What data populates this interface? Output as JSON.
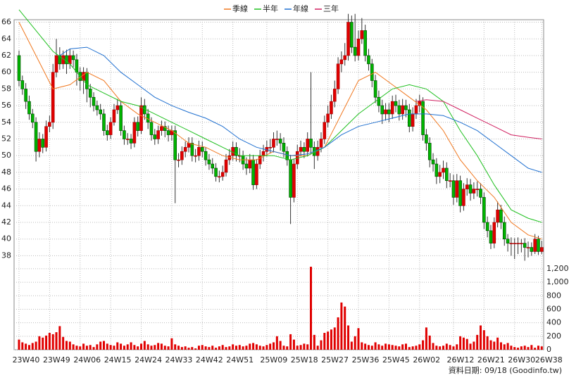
{
  "chart_data": {
    "type": "candlestick",
    "categories": [
      "23W40",
      null,
      null,
      null,
      null,
      null,
      null,
      null,
      null,
      "23W49",
      null,
      null,
      null,
      null,
      null,
      null,
      null,
      null,
      "24W06",
      null,
      null,
      null,
      null,
      null,
      null,
      null,
      null,
      "24W15",
      null,
      null,
      null,
      null,
      null,
      null,
      null,
      null,
      "24W24",
      null,
      null,
      null,
      null,
      null,
      null,
      null,
      null,
      "24W33",
      null,
      null,
      null,
      null,
      null,
      null,
      null,
      null,
      "24W42",
      null,
      null,
      null,
      null,
      null,
      null,
      null,
      null,
      "24W51",
      null,
      null,
      null,
      null,
      null,
      null,
      null,
      null,
      null,
      "25W09",
      null,
      null,
      null,
      null,
      null,
      null,
      null,
      null,
      "25W18",
      null,
      null,
      null,
      null,
      null,
      null,
      null,
      null,
      "25W27",
      null,
      null,
      null,
      null,
      null,
      null,
      null,
      null,
      "25W36",
      null,
      null,
      null,
      null,
      null,
      null,
      null,
      null,
      "25W45",
      null,
      null,
      null,
      null,
      null,
      null,
      null,
      null,
      "26W02",
      null,
      null,
      null,
      null,
      null,
      null,
      null,
      null,
      null,
      "26W12",
      null,
      null,
      null,
      null,
      null,
      null,
      null,
      null,
      "26W21",
      null,
      null,
      null,
      null,
      null,
      null,
      null,
      null,
      "26W30",
      null,
      null,
      null,
      null,
      null,
      null,
      null,
      "26W38"
    ],
    "open": [
      62,
      59,
      58,
      56.5,
      55,
      54,
      50.5,
      52,
      51,
      53.5,
      54,
      60,
      62,
      61,
      62,
      61,
      62,
      61.5,
      60,
      59,
      60,
      58,
      57,
      56,
      55.5,
      55,
      53,
      52.5,
      54,
      55.5,
      56,
      53,
      52,
      52,
      51.5,
      54,
      53,
      56,
      55,
      54,
      52.5,
      52,
      53,
      53.5,
      53,
      52.5,
      53,
      49.5,
      49.5,
      50.5,
      51,
      51.5,
      50,
      50,
      51,
      50.5,
      49.5,
      49,
      48.5,
      47.5,
      47.5,
      48,
      49.5,
      50,
      51,
      50,
      50,
      49,
      48.5,
      49.5,
      46.5,
      49,
      50,
      50.5,
      51,
      51,
      52,
      52,
      51.5,
      50.5,
      49.5,
      45,
      49,
      50.5,
      51,
      50.5,
      52,
      51,
      50,
      51,
      52,
      54,
      55,
      56.5,
      58,
      61,
      61.5,
      62,
      66,
      63,
      62,
      64,
      65,
      62,
      61,
      59,
      57,
      56,
      55,
      55.5,
      55,
      56.5,
      56,
      55,
      56,
      55.5,
      53.5,
      55,
      56,
      56.5,
      52.5,
      51.5,
      49.5,
      49,
      47.5,
      48,
      48.5,
      47,
      47,
      45,
      47,
      44,
      46,
      46.5,
      45.5,
      46,
      46,
      45,
      42,
      41,
      39.5,
      42,
      43.5,
      42,
      40,
      39.5,
      39.5,
      39.5,
      39.5,
      39.5,
      39,
      39,
      38.5,
      40,
      38.5
    ],
    "high": [
      62.6,
      59.6,
      58.7,
      57.2,
      55.6,
      54.6,
      52.8,
      52.6,
      54.2,
      54.8,
      61,
      64,
      63,
      62.6,
      62.7,
      62.8,
      62.6,
      62.2,
      60.6,
      60.6,
      60.5,
      58.6,
      57.6,
      56.6,
      56.2,
      55.6,
      53.7,
      54.6,
      56.2,
      56.8,
      56.6,
      53.6,
      52.7,
      52.6,
      54.6,
      54.7,
      57,
      56.8,
      55.6,
      54.6,
      53.2,
      53.6,
      54.2,
      54.1,
      53.6,
      53.6,
      53.6,
      50.3,
      51.1,
      51.7,
      52.2,
      52.2,
      50.8,
      51.8,
      51.7,
      51,
      50.2,
      49.7,
      49.1,
      48.2,
      48.8,
      50.2,
      50.8,
      51.7,
      51.6,
      50.9,
      50.6,
      49.8,
      50.2,
      50.1,
      49.6,
      50.7,
      51.3,
      51.8,
      52,
      52.8,
      53,
      52.7,
      52.2,
      51.1,
      50.1,
      49.6,
      51.3,
      51.8,
      51.6,
      52.8,
      60,
      51.7,
      51.8,
      52.8,
      54.8,
      56,
      57.3,
      59,
      61.8,
      62.5,
      63.5,
      67,
      66.8,
      67,
      65,
      66.5,
      65.7,
      62.8,
      61.6,
      59.7,
      57.8,
      56.7,
      56.3,
      56.3,
      57.2,
      57.3,
      56.7,
      56.8,
      56.7,
      56.2,
      55.8,
      56.8,
      57.3,
      57,
      53.2,
      52.2,
      50.3,
      49.7,
      48.9,
      49.4,
      49.2,
      47.9,
      47.7,
      47.8,
      47.6,
      46.7,
      47.3,
      47.2,
      46.8,
      46.9,
      46.7,
      45.6,
      42.7,
      41.7,
      42.6,
      44.5,
      44.1,
      42.7,
      40.6,
      40.2,
      40.1,
      40.2,
      40,
      40.1,
      39.7,
      39.6,
      40.6,
      40.4,
      39.8
    ],
    "low": [
      58.3,
      57.3,
      55.6,
      54.3,
      53.3,
      49.3,
      49.8,
      50.3,
      50.5,
      52.8,
      53.2,
      59.4,
      60.3,
      60.4,
      59.8,
      60.4,
      60.6,
      58.4,
      57.8,
      57.4,
      56.4,
      55.8,
      55.3,
      54.8,
      54.3,
      52.4,
      51.8,
      52,
      53.6,
      55,
      52.4,
      51.3,
      51.3,
      50.8,
      51,
      52.3,
      52.6,
      54.3,
      53.2,
      51.8,
      51.3,
      51.4,
      52.4,
      52.2,
      51.7,
      51.8,
      44.3,
      48.6,
      48.9,
      49.8,
      50.4,
      49.3,
      49.2,
      49.4,
      49.8,
      48.8,
      48.3,
      47.8,
      46.9,
      46.8,
      47,
      47.5,
      48.9,
      49.4,
      49.3,
      49.2,
      48.3,
      47.7,
      47.9,
      45.9,
      46,
      48.4,
      49.3,
      49.9,
      50.3,
      50.4,
      51.2,
      50.6,
      49.8,
      48.8,
      41.8,
      44.4,
      48.4,
      49.9,
      49.7,
      49.9,
      50.2,
      48.4,
      49.4,
      50.4,
      51.4,
      53.4,
      54.4,
      55.8,
      57.4,
      60,
      60.8,
      61.4,
      62.3,
      61.3,
      61.4,
      63.4,
      61.3,
      60.2,
      58.2,
      56.3,
      55.2,
      53.8,
      54.2,
      54,
      54.4,
      55.2,
      54.2,
      54.3,
      54.6,
      52.8,
      52.9,
      54.4,
      55.2,
      51.8,
      50.6,
      48.6,
      48.1,
      46.6,
      46.7,
      47.2,
      46.1,
      46.2,
      44.1,
      44.4,
      43.2,
      43.4,
      45.2,
      44.6,
      44.8,
      45.1,
      44.2,
      41.2,
      40.2,
      38.8,
      38.9,
      41.4,
      41.2,
      39.2,
      38.5,
      38,
      37.6,
      38.2,
      38.4,
      37.4,
      37.8,
      38,
      38.2,
      38.1,
      38.2
    ],
    "close": [
      59,
      58,
      56.5,
      55,
      54,
      50.5,
      52,
      51,
      53.5,
      54,
      60,
      62,
      61,
      62,
      61,
      62,
      61.5,
      60,
      59,
      60,
      58,
      57,
      56,
      55.5,
      55,
      53,
      52.5,
      54,
      55.5,
      56,
      53,
      52,
      52,
      51.5,
      54,
      53,
      56,
      55,
      54,
      52.5,
      52,
      53,
      53.5,
      53,
      52.5,
      53,
      49.5,
      49.5,
      50.5,
      51,
      51.5,
      50,
      50,
      51,
      50.5,
      49.5,
      49,
      48.5,
      47.5,
      47.5,
      48,
      49.5,
      50,
      51,
      50,
      50,
      49,
      48.5,
      49.5,
      46.5,
      49,
      50,
      50.5,
      51,
      51,
      52,
      52,
      51.5,
      50.5,
      49.5,
      45,
      49,
      50.5,
      51,
      50.5,
      52,
      51,
      50,
      51,
      52,
      54,
      55,
      56.5,
      58,
      61,
      61.5,
      62,
      66,
      63,
      62,
      64,
      65,
      62,
      61,
      59,
      57,
      56,
      55,
      55.5,
      55,
      56.5,
      56,
      55,
      56,
      55.5,
      53.5,
      55,
      56,
      56.5,
      52.5,
      51.5,
      49.5,
      49,
      47.5,
      48,
      48.5,
      47,
      47,
      45,
      47,
      44,
      46,
      46.5,
      45.5,
      46,
      46,
      45,
      42,
      41,
      39.5,
      42,
      43.5,
      42,
      40,
      39.5,
      39.5,
      39.5,
      39.5,
      39.5,
      39,
      39,
      38.5,
      40,
      38.5,
      39
    ],
    "up_color": "#e00000",
    "down_color": "#00b400",
    "ylim": [
      36.6,
      66.3
    ],
    "yticks": [
      38,
      40,
      42,
      44,
      46,
      48,
      50,
      52,
      54,
      56,
      58,
      60,
      62,
      64,
      66
    ],
    "grid": true,
    "lines": [
      {
        "name": "季線",
        "color": "#f07820",
        "x": [
          0,
          5,
          10,
          15,
          20,
          25,
          30,
          35,
          40,
          45,
          50,
          55,
          60,
          65,
          70,
          75,
          80,
          85,
          90,
          95,
          100,
          105,
          110,
          115,
          120,
          125,
          130,
          135,
          140,
          145,
          150,
          154
        ],
        "values": [
          66,
          62,
          58,
          58.5,
          60,
          59,
          56.5,
          55,
          54,
          53,
          51.5,
          51,
          50,
          49.5,
          49.5,
          50.5,
          50,
          50,
          51,
          55,
          59,
          60,
          58.5,
          57,
          55.5,
          53,
          49.5,
          47,
          45,
          42,
          40.5,
          40
        ]
      },
      {
        "name": "半年",
        "color": "#20c020",
        "x": [
          0,
          5,
          10,
          15,
          20,
          25,
          30,
          35,
          40,
          45,
          50,
          55,
          60,
          65,
          70,
          75,
          80,
          85,
          90,
          95,
          100,
          105,
          110,
          115,
          120,
          125,
          130,
          135,
          140,
          145,
          150,
          154
        ],
        "values": [
          67.5,
          65,
          62.5,
          61,
          58.5,
          57.5,
          56.5,
          56,
          55,
          54,
          53,
          52,
          51,
          50,
          50,
          50,
          49.5,
          50,
          51,
          53,
          55,
          56.5,
          58,
          58.5,
          58,
          56.5,
          53,
          50,
          46.5,
          43.5,
          42.5,
          42
        ]
      },
      {
        "name": "年線",
        "color": "#2070d0",
        "x": [
          12,
          15,
          20,
          25,
          30,
          35,
          40,
          45,
          50,
          55,
          60,
          65,
          70,
          75,
          80,
          85,
          90,
          95,
          100,
          105,
          110,
          115,
          120,
          125,
          130,
          135,
          140,
          145,
          150,
          154
        ],
        "values": [
          62,
          62.8,
          63,
          62,
          60,
          58.5,
          57,
          56,
          55.2,
          54.5,
          53.5,
          52,
          51,
          50.5,
          50,
          50.2,
          51,
          52.5,
          53.5,
          54,
          54.5,
          55,
          55,
          54.8,
          54,
          53,
          51.5,
          50,
          48.5,
          48
        ]
      },
      {
        "name": "三年",
        "color": "#d02060",
        "x": [
          117,
          120,
          125,
          130,
          135,
          140,
          145,
          150,
          154
        ],
        "values": [
          56.5,
          56.7,
          56.5,
          55.5,
          54.5,
          53.5,
          52.5,
          52.2,
          52
        ]
      }
    ],
    "volume": {
      "color": "#e00000",
      "values": [
        150,
        110,
        90,
        70,
        100,
        120,
        200,
        180,
        210,
        250,
        230,
        260,
        350,
        190,
        130,
        120,
        80,
        60,
        50,
        90,
        60,
        70,
        40,
        80,
        120,
        130,
        90,
        70,
        60,
        110,
        90,
        60,
        80,
        110,
        70,
        50,
        90,
        130,
        80,
        60,
        70,
        100,
        90,
        60,
        50,
        170,
        80,
        60,
        40,
        50,
        30,
        40,
        20,
        60,
        70,
        50,
        40,
        60,
        30,
        50,
        70,
        40,
        50,
        80,
        60,
        70,
        50,
        60,
        90,
        100,
        80,
        60,
        50,
        70,
        90,
        110,
        200,
        130,
        60,
        50,
        230,
        150,
        60,
        70,
        90,
        80,
        1230,
        220,
        60,
        140,
        250,
        270,
        300,
        330,
        480,
        700,
        640,
        360,
        120,
        200,
        320,
        110,
        90,
        70,
        60,
        110,
        80,
        60,
        90,
        80,
        70,
        60,
        50,
        80,
        90,
        40,
        50,
        60,
        80,
        140,
        330,
        210,
        100,
        60,
        50,
        60,
        90,
        70,
        50,
        80,
        200,
        180,
        160,
        90,
        120,
        220,
        360,
        290,
        200,
        140,
        120,
        180,
        110,
        80,
        100,
        60,
        40,
        30,
        50,
        60,
        40,
        70,
        30,
        60,
        50
      ],
      "ylim": [
        0,
        1220
      ],
      "yticks": [
        0,
        200,
        400,
        600,
        800,
        {
          "value": 1000,
          "label": "1,000"
        },
        {
          "value": 1200,
          "label": "1,200"
        }
      ]
    },
    "source": "資料日期: 09/18  (Goodinfo.tw)"
  }
}
